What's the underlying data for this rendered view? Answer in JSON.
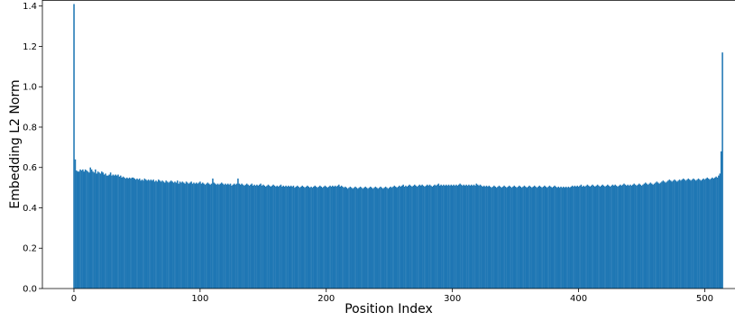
{
  "chart_data": {
    "type": "bar",
    "xlabel": "Position Index",
    "ylabel": "Embedding L2 Norm",
    "xlim": [
      -25,
      524
    ],
    "ylim": [
      0,
      1.43
    ],
    "xticks": [
      0,
      100,
      200,
      300,
      400,
      500
    ],
    "yticks": [
      0.0,
      0.2,
      0.4,
      0.6,
      0.8,
      1.0,
      1.2,
      1.4
    ],
    "bar_color": "#1f77b4",
    "n_positions": 512,
    "series": [
      {
        "x_start": 0,
        "x_step": 1,
        "values": [
          1.41,
          0.64,
          0.585,
          0.58,
          0.58,
          0.59,
          0.585,
          0.59,
          0.58,
          0.59,
          0.585,
          0.58,
          0.575,
          0.6,
          0.59,
          0.58,
          0.575,
          0.59,
          0.57,
          0.58,
          0.575,
          0.57,
          0.58,
          0.575,
          0.565,
          0.57,
          0.56,
          0.56,
          0.565,
          0.575,
          0.56,
          0.565,
          0.56,
          0.565,
          0.56,
          0.565,
          0.555,
          0.56,
          0.55,
          0.555,
          0.55,
          0.545,
          0.55,
          0.545,
          0.55,
          0.545,
          0.55,
          0.55,
          0.545,
          0.54,
          0.545,
          0.54,
          0.545,
          0.535,
          0.54,
          0.535,
          0.545,
          0.54,
          0.535,
          0.54,
          0.535,
          0.54,
          0.535,
          0.54,
          0.53,
          0.535,
          0.53,
          0.54,
          0.535,
          0.53,
          0.535,
          0.53,
          0.525,
          0.535,
          0.53,
          0.525,
          0.53,
          0.535,
          0.53,
          0.525,
          0.53,
          0.525,
          0.535,
          0.52,
          0.53,
          0.525,
          0.53,
          0.525,
          0.52,
          0.53,
          0.525,
          0.52,
          0.525,
          0.53,
          0.52,
          0.525,
          0.52,
          0.525,
          0.52,
          0.525,
          0.53,
          0.52,
          0.525,
          0.52,
          0.515,
          0.52,
          0.525,
          0.52,
          0.515,
          0.52,
          0.545,
          0.525,
          0.52,
          0.515,
          0.52,
          0.515,
          0.52,
          0.525,
          0.52,
          0.515,
          0.52,
          0.515,
          0.52,
          0.515,
          0.52,
          0.51,
          0.515,
          0.52,
          0.515,
          0.52,
          0.545,
          0.52,
          0.515,
          0.52,
          0.515,
          0.51,
          0.515,
          0.52,
          0.515,
          0.51,
          0.515,
          0.52,
          0.51,
          0.515,
          0.51,
          0.515,
          0.51,
          0.515,
          0.52,
          0.51,
          0.515,
          0.51,
          0.505,
          0.51,
          0.515,
          0.51,
          0.505,
          0.51,
          0.515,
          0.51,
          0.505,
          0.51,
          0.505,
          0.51,
          0.515,
          0.505,
          0.51,
          0.505,
          0.51,
          0.505,
          0.51,
          0.505,
          0.51,
          0.505,
          0.51,
          0.5,
          0.505,
          0.51,
          0.505,
          0.5,
          0.505,
          0.51,
          0.505,
          0.5,
          0.505,
          0.51,
          0.505,
          0.5,
          0.505,
          0.5,
          0.505,
          0.51,
          0.505,
          0.5,
          0.505,
          0.51,
          0.505,
          0.5,
          0.505,
          0.51,
          0.505,
          0.5,
          0.505,
          0.51,
          0.505,
          0.51,
          0.505,
          0.51,
          0.505,
          0.51,
          0.515,
          0.505,
          0.51,
          0.505,
          0.5,
          0.505,
          0.5,
          0.495,
          0.5,
          0.505,
          0.5,
          0.495,
          0.5,
          0.505,
          0.5,
          0.495,
          0.5,
          0.505,
          0.5,
          0.495,
          0.5,
          0.505,
          0.5,
          0.495,
          0.5,
          0.505,
          0.5,
          0.495,
          0.5,
          0.505,
          0.5,
          0.495,
          0.5,
          0.505,
          0.5,
          0.495,
          0.5,
          0.505,
          0.5,
          0.495,
          0.5,
          0.505,
          0.5,
          0.505,
          0.51,
          0.505,
          0.5,
          0.505,
          0.51,
          0.505,
          0.51,
          0.515,
          0.505,
          0.51,
          0.505,
          0.51,
          0.515,
          0.51,
          0.505,
          0.51,
          0.515,
          0.51,
          0.505,
          0.51,
          0.515,
          0.51,
          0.515,
          0.51,
          0.505,
          0.51,
          0.515,
          0.51,
          0.515,
          0.51,
          0.505,
          0.51,
          0.515,
          0.51,
          0.515,
          0.52,
          0.51,
          0.515,
          0.51,
          0.515,
          0.51,
          0.515,
          0.51,
          0.515,
          0.51,
          0.515,
          0.51,
          0.515,
          0.51,
          0.515,
          0.51,
          0.515,
          0.52,
          0.515,
          0.51,
          0.515,
          0.51,
          0.515,
          0.51,
          0.515,
          0.51,
          0.515,
          0.51,
          0.515,
          0.51,
          0.52,
          0.515,
          0.51,
          0.515,
          0.51,
          0.505,
          0.51,
          0.505,
          0.51,
          0.505,
          0.51,
          0.505,
          0.5,
          0.505,
          0.51,
          0.505,
          0.5,
          0.505,
          0.51,
          0.505,
          0.5,
          0.505,
          0.51,
          0.505,
          0.5,
          0.505,
          0.51,
          0.505,
          0.5,
          0.505,
          0.51,
          0.505,
          0.5,
          0.505,
          0.51,
          0.505,
          0.5,
          0.505,
          0.51,
          0.505,
          0.5,
          0.505,
          0.51,
          0.505,
          0.5,
          0.505,
          0.51,
          0.505,
          0.5,
          0.505,
          0.51,
          0.505,
          0.5,
          0.505,
          0.51,
          0.505,
          0.5,
          0.505,
          0.51,
          0.505,
          0.5,
          0.505,
          0.51,
          0.505,
          0.5,
          0.505,
          0.5,
          0.505,
          0.5,
          0.505,
          0.5,
          0.505,
          0.5,
          0.505,
          0.5,
          0.505,
          0.51,
          0.505,
          0.51,
          0.505,
          0.51,
          0.505,
          0.51,
          0.515,
          0.505,
          0.51,
          0.505,
          0.51,
          0.515,
          0.51,
          0.505,
          0.51,
          0.515,
          0.51,
          0.505,
          0.51,
          0.515,
          0.51,
          0.505,
          0.51,
          0.515,
          0.51,
          0.505,
          0.51,
          0.515,
          0.51,
          0.505,
          0.51,
          0.515,
          0.51,
          0.515,
          0.51,
          0.505,
          0.51,
          0.515,
          0.51,
          0.515,
          0.52,
          0.515,
          0.51,
          0.515,
          0.51,
          0.515,
          0.51,
          0.515,
          0.52,
          0.515,
          0.51,
          0.515,
          0.52,
          0.515,
          0.51,
          0.515,
          0.52,
          0.525,
          0.52,
          0.515,
          0.52,
          0.525,
          0.52,
          0.515,
          0.52,
          0.525,
          0.53,
          0.525,
          0.52,
          0.525,
          0.53,
          0.535,
          0.53,
          0.525,
          0.53,
          0.535,
          0.54,
          0.535,
          0.53,
          0.535,
          0.54,
          0.535,
          0.53,
          0.535,
          0.54,
          0.535,
          0.54,
          0.545,
          0.54,
          0.535,
          0.54,
          0.545,
          0.54,
          0.535,
          0.54,
          0.545,
          0.54,
          0.535,
          0.54,
          0.545,
          0.54,
          0.535,
          0.54,
          0.545,
          0.54,
          0.545,
          0.55,
          0.545,
          0.54,
          0.545,
          0.55,
          0.545,
          0.55,
          0.555,
          0.55,
          0.56,
          0.57,
          0.68,
          1.17
        ]
      }
    ]
  }
}
